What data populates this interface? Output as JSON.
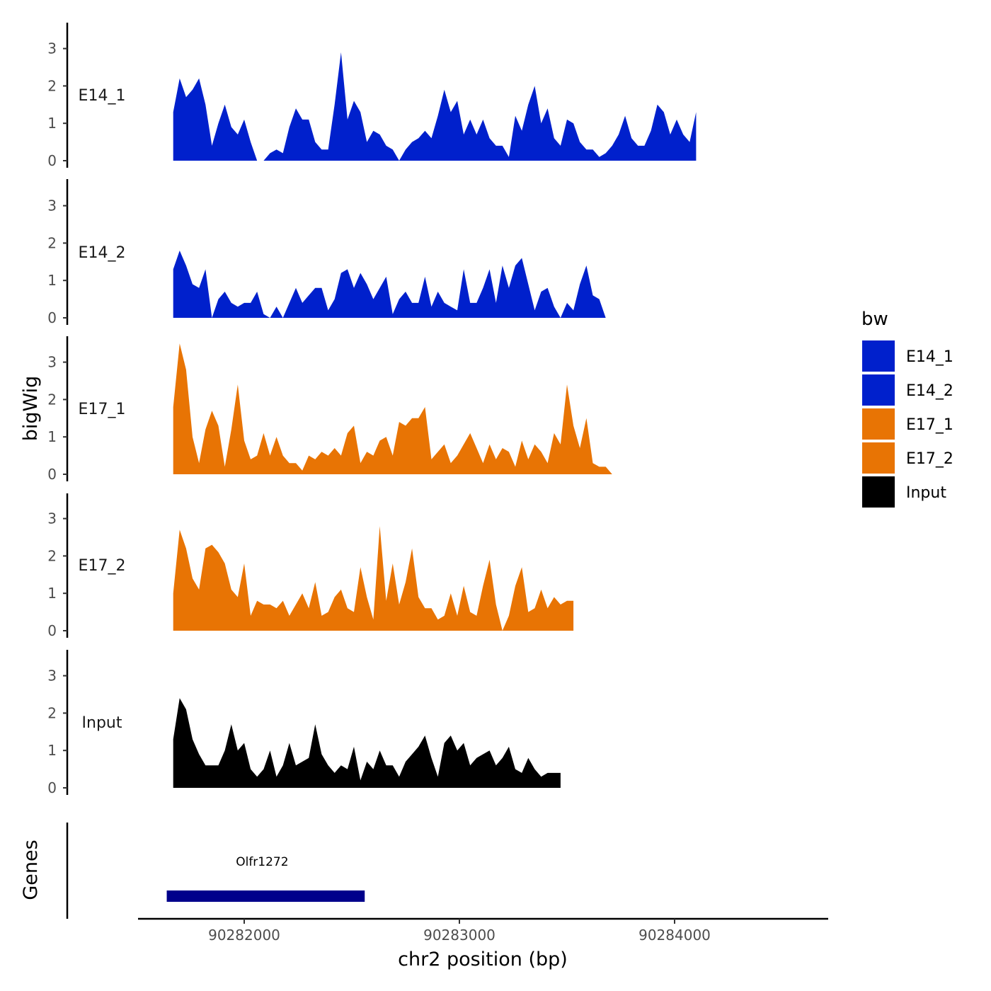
{
  "chart_data": {
    "type": "area",
    "ylabel": "bigWig",
    "xlabel": "chr2 position (bp)",
    "genes_label": "Genes",
    "xlim": [
      90281500,
      90284600
    ],
    "ylim": [
      0,
      3.7
    ],
    "x_ticks": [
      90282000,
      90283000,
      90284000
    ],
    "x_tick_labels": [
      "90282000",
      "90283000",
      "90284000"
    ],
    "y_ticks": [
      0,
      1,
      2,
      3
    ],
    "y_tick_labels": [
      "0",
      "1",
      "2",
      "3"
    ],
    "legend": {
      "title": "bw",
      "items": [
        {
          "label": "E14_1",
          "color": "#0020cc"
        },
        {
          "label": "E14_2",
          "color": "#0020cc"
        },
        {
          "label": "E17_1",
          "color": "#e87404"
        },
        {
          "label": "E17_2",
          "color": "#e87404"
        },
        {
          "label": "Input",
          "color": "#000000"
        }
      ]
    },
    "x_positions": [
      90281670,
      90281700,
      90281730,
      90281760,
      90281790,
      90281820,
      90281850,
      90281880,
      90281910,
      90281940,
      90281970,
      90282000,
      90282030,
      90282060,
      90282090,
      90282120,
      90282150,
      90282180,
      90282210,
      90282240,
      90282270,
      90282300,
      90282330,
      90282360,
      90282390,
      90282420,
      90282450,
      90282480,
      90282510,
      90282540,
      90282570,
      90282600,
      90282630,
      90282660,
      90282690,
      90282720,
      90282750,
      90282780,
      90282810,
      90282840,
      90282870,
      90282900,
      90282930,
      90282960,
      90282990,
      90283020,
      90283050,
      90283080,
      90283110,
      90283140,
      90283170,
      90283200,
      90283230,
      90283260,
      90283290,
      90283320,
      90283350,
      90283380,
      90283410,
      90283440,
      90283470,
      90283500,
      90283530,
      90283560,
      90283590,
      90283620,
      90283650,
      90283680,
      90283710,
      90283740,
      90283770,
      90283800,
      90283830,
      90283860,
      90283890,
      90283920,
      90283950,
      90283980,
      90284010,
      90284040,
      90284070,
      90284100,
      90284130,
      90284160,
      90284190,
      90284220,
      90284250,
      90284280,
      90284310,
      90284340,
      90284370,
      90284400,
      90284430,
      90284460,
      90284490,
      90284520,
      90284550
    ],
    "series": [
      {
        "name": "E14_1",
        "color": "#0020cc",
        "values": [
          1.3,
          2.2,
          1.7,
          1.9,
          2.2,
          1.5,
          0.4,
          1.0,
          1.5,
          0.9,
          0.7,
          1.1,
          0.5,
          0.0,
          0.0,
          0.2,
          0.3,
          0.2,
          0.9,
          1.4,
          1.1,
          1.1,
          0.5,
          0.3,
          0.3,
          1.5,
          2.9,
          1.1,
          1.6,
          1.3,
          0.5,
          0.8,
          0.7,
          0.4,
          0.3,
          0.0,
          0.3,
          0.5,
          0.6,
          0.8,
          0.6,
          1.2,
          1.9,
          1.3,
          1.6,
          0.7,
          1.1,
          0.7,
          1.1,
          0.6,
          0.4,
          0.4,
          0.1,
          1.2,
          0.8,
          1.5,
          2.0,
          1.0,
          1.4,
          0.6,
          0.4,
          1.1,
          1.0,
          0.5,
          0.3,
          0.3,
          0.1,
          0.2,
          0.4,
          0.7,
          1.2,
          0.6,
          0.4,
          0.4,
          0.8,
          1.5,
          1.3,
          0.7,
          1.1,
          0.7,
          0.5,
          1.3
        ]
      },
      {
        "name": "E14_2",
        "color": "#0020cc",
        "values": [
          1.3,
          1.8,
          1.4,
          0.9,
          0.8,
          1.3,
          0.0,
          0.5,
          0.7,
          0.4,
          0.3,
          0.4,
          0.4,
          0.7,
          0.1,
          0.0,
          0.3,
          0.0,
          0.4,
          0.8,
          0.4,
          0.6,
          0.8,
          0.8,
          0.2,
          0.5,
          1.2,
          1.3,
          0.8,
          1.2,
          0.9,
          0.5,
          0.8,
          1.1,
          0.1,
          0.5,
          0.7,
          0.4,
          0.4,
          1.1,
          0.3,
          0.7,
          0.4,
          0.3,
          0.2,
          1.3,
          0.4,
          0.4,
          0.8,
          1.3,
          0.4,
          1.4,
          0.8,
          1.4,
          1.6,
          0.9,
          0.2,
          0.7,
          0.8,
          0.3,
          0.0,
          0.4,
          0.2,
          0.9,
          1.4,
          0.6,
          0.5,
          0.0
        ]
      },
      {
        "name": "E17_1",
        "color": "#e87404",
        "values": [
          1.8,
          3.5,
          2.8,
          1.0,
          0.3,
          1.2,
          1.7,
          1.3,
          0.2,
          1.2,
          2.4,
          0.9,
          0.4,
          0.5,
          1.1,
          0.5,
          1.0,
          0.5,
          0.3,
          0.3,
          0.1,
          0.5,
          0.4,
          0.6,
          0.5,
          0.7,
          0.5,
          1.1,
          1.3,
          0.3,
          0.6,
          0.5,
          0.9,
          1.0,
          0.5,
          1.4,
          1.3,
          1.5,
          1.5,
          1.8,
          0.4,
          0.6,
          0.8,
          0.3,
          0.5,
          0.8,
          1.1,
          0.7,
          0.3,
          0.8,
          0.4,
          0.7,
          0.6,
          0.2,
          0.9,
          0.4,
          0.8,
          0.6,
          0.3,
          1.1,
          0.8,
          2.4,
          1.3,
          0.7,
          1.5,
          0.3,
          0.2,
          0.2,
          0.0
        ]
      },
      {
        "name": "E17_2",
        "color": "#e87404",
        "values": [
          1.0,
          2.7,
          2.2,
          1.4,
          1.1,
          2.2,
          2.3,
          2.1,
          1.8,
          1.1,
          0.9,
          1.8,
          0.4,
          0.8,
          0.7,
          0.7,
          0.6,
          0.8,
          0.4,
          0.7,
          1.0,
          0.6,
          1.3,
          0.4,
          0.5,
          0.9,
          1.1,
          0.6,
          0.5,
          1.7,
          0.9,
          0.3,
          2.8,
          0.8,
          1.8,
          0.7,
          1.3,
          2.2,
          0.9,
          0.6,
          0.6,
          0.3,
          0.4,
          1.0,
          0.4,
          1.2,
          0.5,
          0.4,
          1.2,
          1.9,
          0.7,
          0.0,
          0.4,
          1.2,
          1.7,
          0.5,
          0.6,
          1.1,
          0.6,
          0.9,
          0.7,
          0.8,
          0.8
        ]
      },
      {
        "name": "Input",
        "color": "#000000",
        "values": [
          1.3,
          2.4,
          2.1,
          1.3,
          0.9,
          0.6,
          0.6,
          0.6,
          1.0,
          1.7,
          1.0,
          1.2,
          0.5,
          0.3,
          0.5,
          1.0,
          0.3,
          0.6,
          1.2,
          0.6,
          0.7,
          0.8,
          1.7,
          0.9,
          0.6,
          0.4,
          0.6,
          0.5,
          1.1,
          0.2,
          0.7,
          0.5,
          1.0,
          0.6,
          0.6,
          0.3,
          0.7,
          0.9,
          1.1,
          1.4,
          0.8,
          0.3,
          1.2,
          1.4,
          1.0,
          1.2,
          0.6,
          0.8,
          0.9,
          1.0,
          0.6,
          0.8,
          1.1,
          0.5,
          0.4,
          0.8,
          0.5,
          0.3,
          0.4,
          0.4,
          0.4
        ]
      }
    ],
    "gene": {
      "name": "Olfr1272",
      "start": 90281640,
      "end": 90282560,
      "color": "#00008b"
    }
  }
}
